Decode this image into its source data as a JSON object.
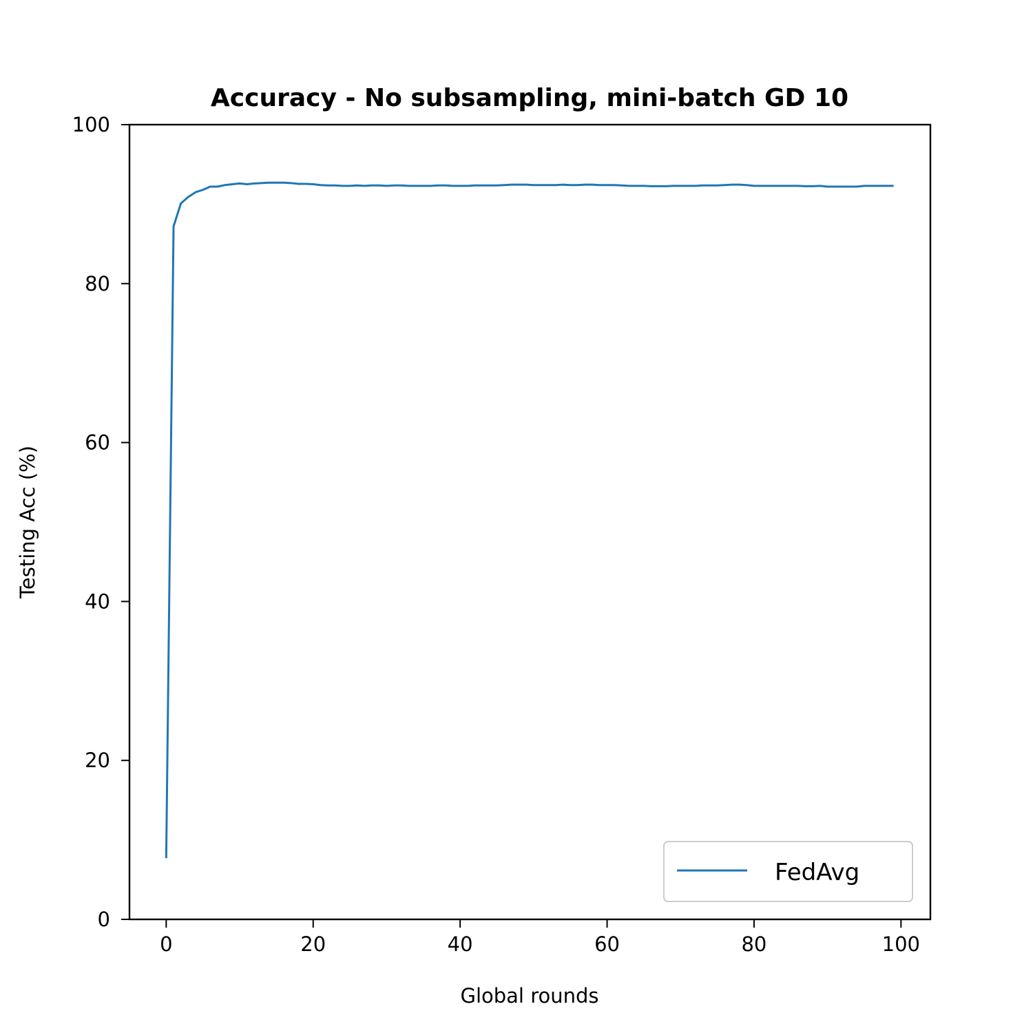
{
  "chart_data": {
    "type": "line",
    "title": "Accuracy - No subsampling, mini-batch GD 10",
    "xlabel": "Global rounds",
    "ylabel": "Testing Acc (%)",
    "xlim": [
      -5,
      104
    ],
    "ylim": [
      0,
      100
    ],
    "xticks": [
      0,
      20,
      40,
      60,
      80,
      100
    ],
    "yticks": [
      0,
      20,
      40,
      60,
      80,
      100
    ],
    "xtick_labels": [
      "0",
      "20",
      "40",
      "60",
      "80",
      "100"
    ],
    "ytick_labels": [
      "0",
      "20",
      "40",
      "60",
      "80",
      "100"
    ],
    "grid": false,
    "legend": {
      "position": "lower-right",
      "entries": [
        "FedAvg"
      ]
    },
    "series": [
      {
        "name": "FedAvg",
        "color": "#1f77b4",
        "x": [
          0,
          1,
          2,
          3,
          4,
          5,
          6,
          7,
          8,
          9,
          10,
          11,
          12,
          13,
          14,
          15,
          16,
          17,
          18,
          19,
          20,
          21,
          22,
          23,
          24,
          25,
          26,
          27,
          28,
          29,
          30,
          31,
          32,
          33,
          34,
          35,
          36,
          37,
          38,
          39,
          40,
          41,
          42,
          43,
          44,
          45,
          46,
          47,
          48,
          49,
          50,
          51,
          52,
          53,
          54,
          55,
          56,
          57,
          58,
          59,
          60,
          61,
          62,
          63,
          64,
          65,
          66,
          67,
          68,
          69,
          70,
          71,
          72,
          73,
          74,
          75,
          76,
          77,
          78,
          79,
          80,
          81,
          82,
          83,
          84,
          85,
          86,
          87,
          88,
          89,
          90,
          91,
          92,
          93,
          94,
          95,
          96,
          97,
          98,
          99
        ],
        "y": [
          7.7,
          87.2,
          90.1,
          90.9,
          91.5,
          91.8,
          92.2,
          92.2,
          92.4,
          92.5,
          92.6,
          92.5,
          92.6,
          92.65,
          92.7,
          92.7,
          92.7,
          92.65,
          92.55,
          92.55,
          92.5,
          92.4,
          92.35,
          92.35,
          92.3,
          92.3,
          92.35,
          92.3,
          92.35,
          92.35,
          92.3,
          92.35,
          92.35,
          92.3,
          92.3,
          92.3,
          92.3,
          92.35,
          92.35,
          92.3,
          92.3,
          92.3,
          92.35,
          92.35,
          92.35,
          92.35,
          92.4,
          92.45,
          92.45,
          92.45,
          92.4,
          92.4,
          92.4,
          92.4,
          92.45,
          92.4,
          92.4,
          92.45,
          92.45,
          92.4,
          92.4,
          92.4,
          92.35,
          92.3,
          92.3,
          92.3,
          92.25,
          92.25,
          92.25,
          92.3,
          92.3,
          92.3,
          92.3,
          92.35,
          92.35,
          92.35,
          92.4,
          92.45,
          92.45,
          92.4,
          92.3,
          92.3,
          92.3,
          92.3,
          92.3,
          92.3,
          92.3,
          92.25,
          92.25,
          92.3,
          92.2,
          92.2,
          92.2,
          92.2,
          92.2,
          92.3,
          92.3,
          92.3,
          92.3,
          92.3
        ]
      }
    ]
  }
}
